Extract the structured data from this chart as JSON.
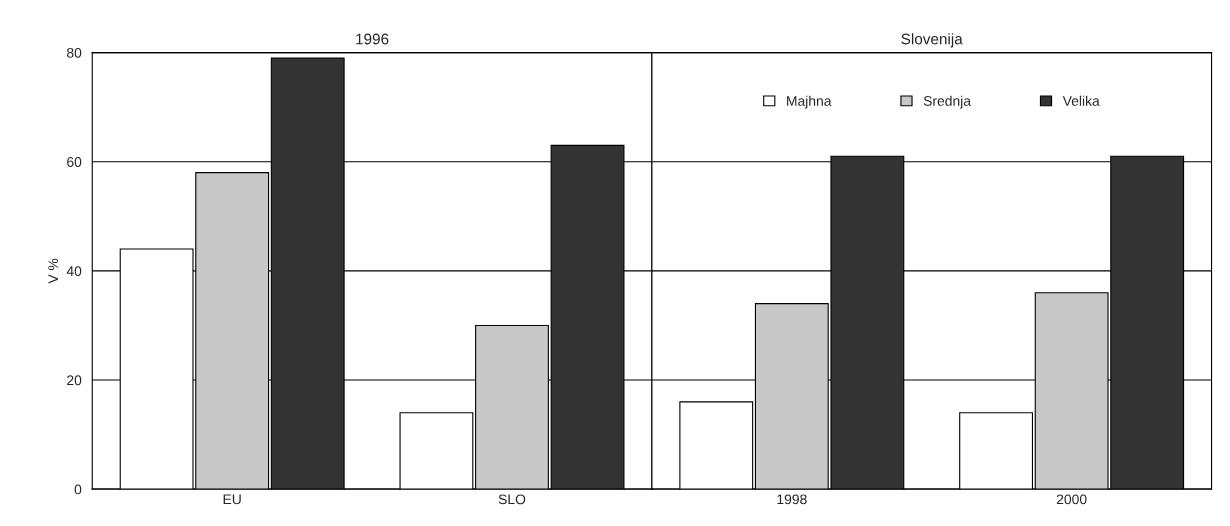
{
  "chart_data": [
    {
      "type": "bar",
      "title": "1996",
      "ylabel": "V %",
      "categories": [
        "EU",
        "SLO"
      ],
      "ylim": [
        0,
        80
      ],
      "yticks": [
        0,
        20,
        40,
        60,
        80
      ],
      "grid": "y",
      "legend": false,
      "series": [
        {
          "color": "#ffffff",
          "values": [
            44,
            14
          ]
        },
        {
          "color": "#c8c8c8",
          "values": [
            58,
            30
          ]
        },
        {
          "color": "#333333",
          "values": [
            79,
            63
          ]
        }
      ]
    },
    {
      "type": "bar",
      "title": "Slovenija",
      "categories": [
        "1998",
        "2000"
      ],
      "ylim": [
        0,
        80
      ],
      "yticks": [
        0,
        20,
        40,
        60,
        80
      ],
      "grid": "y",
      "legend": "top",
      "tick_labels": "x",
      "series": [
        {
          "name": "Majhna",
          "color": "#ffffff",
          "values": [
            16,
            14
          ]
        },
        {
          "name": "Srednja",
          "color": "#c8c8c8",
          "values": [
            34,
            36
          ]
        },
        {
          "name": "Velika",
          "color": "#333333",
          "values": [
            61,
            61
          ]
        }
      ]
    }
  ]
}
